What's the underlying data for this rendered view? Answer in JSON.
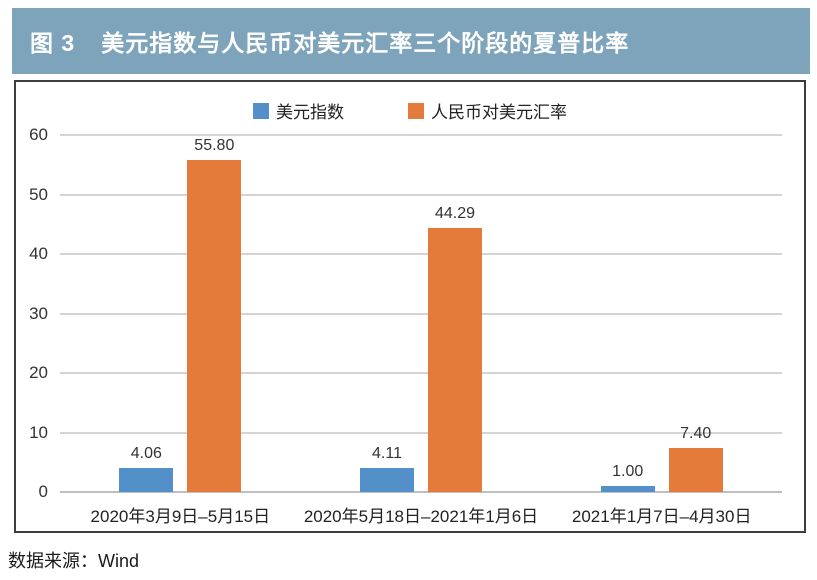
{
  "figure": {
    "label": "图 3",
    "title": "美元指数与人民币对美元汇率三个阶段的夏普比率",
    "source": "数据来源：Wind"
  },
  "colors": {
    "title_bar_bg": "#7ea4bc",
    "title_text": "#ffffff",
    "series_blue": "#5390c9",
    "series_orange": "#e57b3b",
    "frame_border": "#3d3d3d",
    "gridline": "#d4d4d4"
  },
  "chart_data": {
    "type": "bar",
    "title": "美元指数与人民币对美元汇率三个阶段的夏普比率",
    "categories": [
      "2020年3月9日–5月15日",
      "2020年5月18日–2021年1月6日",
      "2021年1月7日–4月30日"
    ],
    "series": [
      {
        "id": "usd-index",
        "name": "美元指数",
        "color": "#5390c9",
        "values": [
          4.06,
          4.11,
          1.0
        ],
        "labels": [
          "4.06",
          "4.11",
          "1.00"
        ]
      },
      {
        "id": "cny-usd-rate",
        "name": "人民币对美元汇率",
        "color": "#e57b3b",
        "values": [
          55.8,
          44.29,
          7.4
        ],
        "labels": [
          "55.80",
          "44.29",
          "7.40"
        ]
      }
    ],
    "xlabel": "",
    "ylabel": "",
    "ylim": [
      0,
      60
    ],
    "yticks": [
      0,
      10,
      20,
      30,
      40,
      50,
      60
    ],
    "grid": true,
    "legend_position": "top-center"
  }
}
